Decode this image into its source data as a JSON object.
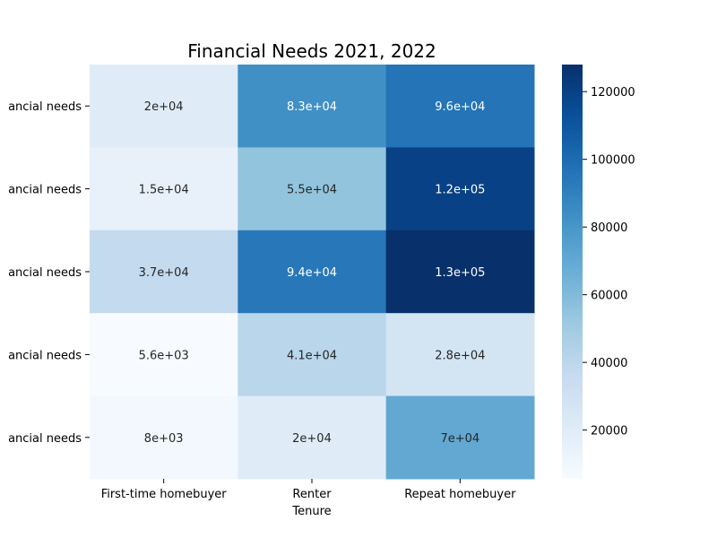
{
  "chart_data": {
    "type": "heatmap",
    "title": "Financial Needs 2021, 2022",
    "xlabel": "Tenure",
    "ylabel": "",
    "x_categories": [
      "First-time homebuyer",
      "Renter",
      "Repeat homebuyer"
    ],
    "y_categories": [
      "ancial needs",
      "ancial needs",
      "ancial needs",
      "ancial needs",
      "ancial needs"
    ],
    "values": [
      [
        20000,
        83000,
        96000
      ],
      [
        15000,
        55000,
        120000
      ],
      [
        37000,
        94000,
        130000
      ],
      [
        5600,
        41000,
        28000
      ],
      [
        8000,
        20000,
        70000
      ]
    ],
    "cell_labels": [
      [
        "2e+04",
        "8.3e+04",
        "9.6e+04"
      ],
      [
        "1.5e+04",
        "5.5e+04",
        "1.2e+05"
      ],
      [
        "3.7e+04",
        "9.4e+04",
        "1.3e+05"
      ],
      [
        "5.6e+03",
        "4.1e+04",
        "2.8e+04"
      ],
      [
        "8e+03",
        "2e+04",
        "7e+04"
      ]
    ],
    "colormap": "Blues",
    "color_range": [
      5600,
      128000
    ],
    "colorbar_ticks": [
      20000,
      40000,
      60000,
      80000,
      100000,
      120000
    ],
    "colorbar_tick_labels": [
      "20000",
      "40000",
      "60000",
      "80000",
      "100000",
      "120000"
    ]
  }
}
